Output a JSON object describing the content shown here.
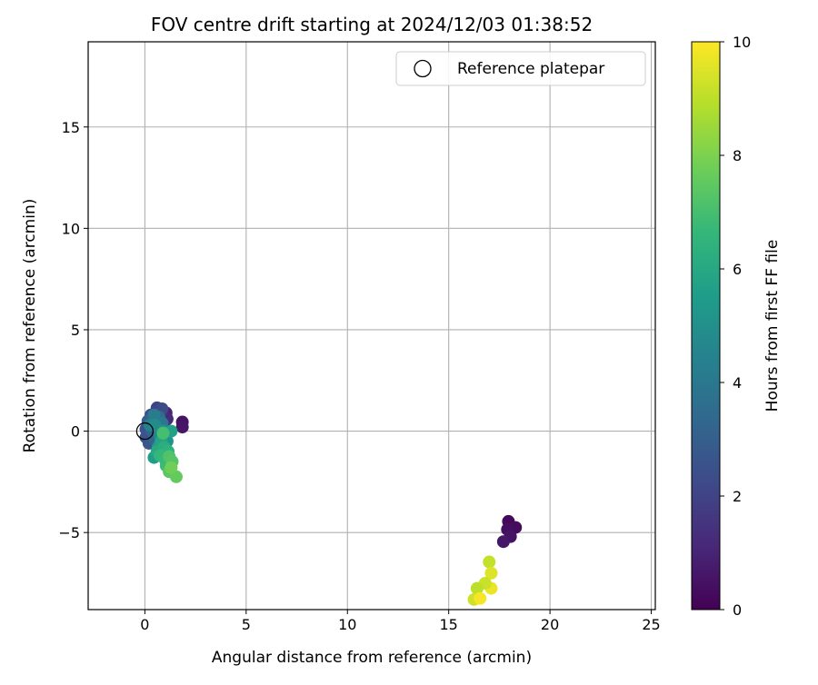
{
  "chart_data": {
    "type": "scatter",
    "title": "FOV centre drift starting at 2024/12/03 01:38:52",
    "xlabel": "Angular distance from reference (arcmin)",
    "ylabel": "Rotation from reference (arcmin)",
    "xlim": [
      -2.8,
      25.2
    ],
    "ylim": [
      -8.8,
      19.2
    ],
    "xticks": [
      0,
      5,
      10,
      15,
      20,
      25
    ],
    "yticks": [
      -5,
      0,
      5,
      10,
      15
    ],
    "xtick_labels": [
      "0",
      "5",
      "10",
      "15",
      "20",
      "25"
    ],
    "ytick_labels": [
      "−5",
      "0",
      "5",
      "10",
      "15"
    ],
    "grid": true,
    "legend": {
      "position": "top-right",
      "entries": [
        "Reference platepar"
      ]
    },
    "reference_point": {
      "x": 0,
      "y": 0,
      "label": "Reference platepar"
    },
    "colorbar": {
      "label": "Hours from first FF file",
      "colormap": "viridis",
      "range": [
        0,
        10
      ],
      "ticks": [
        0,
        2,
        4,
        6,
        8,
        10
      ],
      "tick_labels": [
        "0",
        "2",
        "4",
        "6",
        "8",
        "10"
      ]
    },
    "points": [
      {
        "x": 1.85,
        "y": 0.45,
        "c": 0.5
      },
      {
        "x": 1.85,
        "y": 0.2,
        "c": 0.6
      },
      {
        "x": 1.05,
        "y": 0.9,
        "c": 1.0
      },
      {
        "x": 1.1,
        "y": 0.6,
        "c": 1.2
      },
      {
        "x": 0.95,
        "y": 0.3,
        "c": 1.5
      },
      {
        "x": 0.6,
        "y": 1.15,
        "c": 2.0
      },
      {
        "x": 0.85,
        "y": 1.1,
        "c": 2.3
      },
      {
        "x": 0.3,
        "y": 0.8,
        "c": 2.4
      },
      {
        "x": 0.05,
        "y": -0.3,
        "c": 2.5
      },
      {
        "x": 0.05,
        "y": 0.1,
        "c": 2.6
      },
      {
        "x": 0.2,
        "y": -0.6,
        "c": 2.7
      },
      {
        "x": 0.4,
        "y": 0.5,
        "c": 2.8
      },
      {
        "x": 0.15,
        "y": 0.5,
        "c": 3.0
      },
      {
        "x": 0.35,
        "y": 0.0,
        "c": 3.1
      },
      {
        "x": 0.5,
        "y": -0.4,
        "c": 3.3
      },
      {
        "x": 0.7,
        "y": 0.7,
        "c": 3.5
      },
      {
        "x": 0.6,
        "y": 0.2,
        "c": 3.7
      },
      {
        "x": 0.85,
        "y": 0.4,
        "c": 4.0
      },
      {
        "x": 0.45,
        "y": 0.8,
        "c": 4.2
      },
      {
        "x": 0.25,
        "y": 0.3,
        "c": 4.4
      },
      {
        "x": 0.75,
        "y": -0.2,
        "c": 4.6
      },
      {
        "x": 0.5,
        "y": 0.3,
        "c": 4.8
      },
      {
        "x": 0.9,
        "y": 0.0,
        "c": 5.0
      },
      {
        "x": 1.1,
        "y": -0.5,
        "c": 5.2
      },
      {
        "x": 0.65,
        "y": -0.8,
        "c": 5.3
      },
      {
        "x": 0.45,
        "y": -1.3,
        "c": 5.5
      },
      {
        "x": 1.3,
        "y": 0.0,
        "c": 5.7
      },
      {
        "x": 0.8,
        "y": -0.5,
        "c": 5.8
      },
      {
        "x": 0.6,
        "y": -1.0,
        "c": 6.0
      },
      {
        "x": 0.95,
        "y": -0.8,
        "c": 6.2
      },
      {
        "x": 1.15,
        "y": -1.0,
        "c": 6.4
      },
      {
        "x": 0.75,
        "y": -1.2,
        "c": 6.6
      },
      {
        "x": 1.0,
        "y": -1.4,
        "c": 6.7
      },
      {
        "x": 1.05,
        "y": -1.7,
        "c": 6.8
      },
      {
        "x": 0.9,
        "y": -0.1,
        "c": 7.0
      },
      {
        "x": 1.2,
        "y": -1.25,
        "c": 7.2
      },
      {
        "x": 1.35,
        "y": -1.5,
        "c": 7.3
      },
      {
        "x": 1.2,
        "y": -2.0,
        "c": 7.4
      },
      {
        "x": 1.55,
        "y": -2.25,
        "c": 7.6
      },
      {
        "x": 1.3,
        "y": -1.8,
        "c": 7.8
      },
      {
        "x": 17.95,
        "y": -4.45,
        "c": 0.2
      },
      {
        "x": 18.3,
        "y": -4.75,
        "c": 0.3
      },
      {
        "x": 17.9,
        "y": -4.85,
        "c": 0.4
      },
      {
        "x": 18.05,
        "y": -5.2,
        "c": 0.5
      },
      {
        "x": 17.7,
        "y": -5.45,
        "c": 0.6
      },
      {
        "x": 17.0,
        "y": -6.45,
        "c": 9.1
      },
      {
        "x": 17.1,
        "y": -7.0,
        "c": 9.5
      },
      {
        "x": 17.1,
        "y": -7.75,
        "c": 9.7
      },
      {
        "x": 16.8,
        "y": -7.5,
        "c": 9.2
      },
      {
        "x": 16.4,
        "y": -7.75,
        "c": 9.0
      },
      {
        "x": 16.25,
        "y": -8.3,
        "c": 9.3
      },
      {
        "x": 16.55,
        "y": -8.25,
        "c": 9.9
      }
    ]
  }
}
